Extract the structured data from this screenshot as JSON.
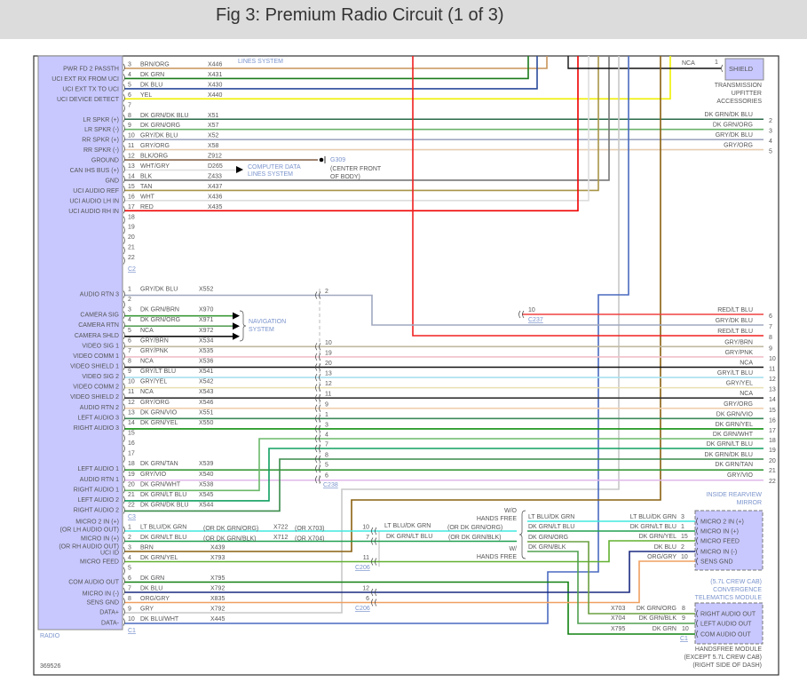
{
  "title": "Fig 3: Premium Radio Circuit (1 of 3)",
  "radio": {
    "label": "RADIO",
    "part_number": "369526"
  },
  "c2": {
    "connector": "C2",
    "top_note": "LINES SYSTEM",
    "pins": [
      {
        "pin": "3",
        "wire": "BRN/ORG",
        "circuit": "X446",
        "func": "PWR FD 2 PASSTH",
        "hex": "#c8945a"
      },
      {
        "pin": "4",
        "wire": "DK GRN",
        "circuit": "X431",
        "func": "UCI EXT RX FROM UCI",
        "hex": "#1a7a1a"
      },
      {
        "pin": "5",
        "wire": "DK BLU",
        "circuit": "X430",
        "func": "UCI EXT TX TO UCI",
        "hex": "#2a4a9a"
      },
      {
        "pin": "6",
        "wire": "YEL",
        "circuit": "X440",
        "func": "UCI DEVICE DETECT",
        "hex": "#f0f000"
      },
      {
        "pin": "7"
      },
      {
        "pin": "8",
        "wire": "DK GRN/DK BLU",
        "circuit": "X51",
        "func": "LR SPKR (+)",
        "hex": "#2a6a4a"
      },
      {
        "pin": "9",
        "wire": "DK GRN/ORG",
        "circuit": "X57",
        "func": "LR SPKR (-)",
        "hex": "#6ab06a"
      },
      {
        "pin": "10",
        "wire": "GRY/DK BLU",
        "circuit": "X52",
        "func": "RR SPKR (+)",
        "hex": "#a0a8c0"
      },
      {
        "pin": "11",
        "wire": "GRY/ORG",
        "circuit": "X58",
        "func": "RR SPKR (-)",
        "hex": "#e8cdb0"
      },
      {
        "pin": "12",
        "wire": "BLK/ORG",
        "circuit": "Z912",
        "func": "GROUND",
        "hex": "#8a6a50"
      },
      {
        "pin": "13",
        "wire": "WHT/GRY",
        "circuit": "D265",
        "func": "CAN IHS BUS (+)",
        "hex": "#dddddd"
      },
      {
        "pin": "14",
        "wire": "BLK",
        "circuit": "Z433",
        "func": "GND",
        "hex": "#777777"
      },
      {
        "pin": "15",
        "wire": "TAN",
        "circuit": "X437",
        "func": "UCI AUDIO REF",
        "hex": "#a89448"
      },
      {
        "pin": "16",
        "wire": "WHT",
        "circuit": "X436",
        "func": "UCI AUDIO LH IN",
        "hex": "#dddddd"
      },
      {
        "pin": "17",
        "wire": "RED",
        "circuit": "X435",
        "func": "UCI AUDIO RH IN",
        "hex": "#f00000"
      },
      {
        "pin": "18"
      },
      {
        "pin": "19"
      },
      {
        "pin": "20"
      },
      {
        "pin": "21"
      },
      {
        "pin": "22"
      }
    ]
  },
  "ground": {
    "id": "G309",
    "location1": "(CENTER FRONT",
    "location2": "OF BODY)"
  },
  "computer_data": {
    "line1": "COMPUTER DATA",
    "line2": "LINES SYSTEM"
  },
  "shield": {
    "label": "SHIELD",
    "wire": "NCA",
    "pin": "1",
    "module": [
      "TRANSMISSION",
      "UPFITTER",
      "ACCESSORIES"
    ]
  },
  "navigation": {
    "line1": "NAVIGATION",
    "line2": "SYSTEM"
  },
  "c3": {
    "connector": "C3",
    "pins": [
      {
        "pin": "1",
        "wire": "GRY/DK BLU",
        "circuit": "X552",
        "func": "AUDIO RTN 3",
        "hex": "#a0a8c0"
      },
      {
        "pin": "2"
      },
      {
        "pin": "3",
        "wire": "DK GRN/BRN",
        "circuit": "X970",
        "func": "CAMERA SIG",
        "hex": "#3a9a3a"
      },
      {
        "pin": "4",
        "wire": "DK GRN/ORG",
        "circuit": "X971",
        "func": "CAMERA RTN",
        "hex": "#5aa05a"
      },
      {
        "pin": "5",
        "wire": "NCA",
        "circuit": "X972",
        "func": "CAMERA SHLD",
        "hex": "#111111"
      },
      {
        "pin": "6",
        "wire": "GRY/BRN",
        "circuit": "X534",
        "func": "VIDEO SIG 1",
        "hex": "#c0b8a0"
      },
      {
        "pin": "7",
        "wire": "GRY/PNK",
        "circuit": "X535",
        "func": "VIDEO COMM 1",
        "hex": "#f0c0c8"
      },
      {
        "pin": "8",
        "wire": "NCA",
        "circuit": "X536",
        "func": "VIDEO SHIELD 1",
        "hex": "#111111"
      },
      {
        "pin": "9",
        "wire": "GRY/LT BLU",
        "circuit": "X541",
        "func": "VIDEO SIG 2",
        "hex": "#a8e0f0"
      },
      {
        "pin": "10",
        "wire": "GRY/YEL",
        "circuit": "X542",
        "func": "VIDEO COMM 2",
        "hex": "#e8e0b0"
      },
      {
        "pin": "11",
        "wire": "NCA",
        "circuit": "X543",
        "func": "VIDEO SHIELD 2",
        "hex": "#333333"
      },
      {
        "pin": "12",
        "wire": "GRY/ORG",
        "circuit": "X546",
        "func": "AUDIO RTN 2",
        "hex": "#f0d0b0"
      },
      {
        "pin": "13",
        "wire": "DK GRN/VIO",
        "circuit": "X551",
        "func": "LEFT AUDIO 3",
        "hex": "#3a8a5a"
      },
      {
        "pin": "14",
        "wire": "DK GRN/YEL",
        "circuit": "X550",
        "func": "RIGHT AUDIO 3",
        "hex": "#109010"
      },
      {
        "pin": "15"
      },
      {
        "pin": "16"
      },
      {
        "pin": "17"
      },
      {
        "pin": "18",
        "wire": "DK GRN/TAN",
        "circuit": "X539",
        "func": "LEFT AUDIO 1",
        "hex": "#3a9a3a"
      },
      {
        "pin": "19",
        "wire": "GRY/VIO",
        "circuit": "X540",
        "func": "AUDIO RTN 1",
        "hex": "#e0b8e8"
      },
      {
        "pin": "20",
        "wire": "DK GRN/WHT",
        "circuit": "X538",
        "func": "RIGHT AUDIO 1",
        "hex": "#6ab86a"
      },
      {
        "pin": "21",
        "wire": "DK GRN/LT BLU",
        "circuit": "X545",
        "func": "LEFT AUDIO 2",
        "hex": "#10a060"
      },
      {
        "pin": "22",
        "wire": "DK GRN/DK BLU",
        "circuit": "X544",
        "func": "RIGHT AUDIO 2",
        "hex": "#3a8a4a"
      }
    ]
  },
  "c238": {
    "connector": "C238",
    "pins": [
      "2",
      "10",
      "19",
      "20",
      "13",
      "12",
      "11",
      "9",
      "1",
      "3",
      "4",
      "7",
      "8",
      "5",
      "6"
    ]
  },
  "c237": {
    "connector": "C237",
    "pin": "10"
  },
  "right_pins": [
    {
      "pin": "2",
      "wire": "DK GRN/DK BLU"
    },
    {
      "pin": "3",
      "wire": "DK GRN/ORG"
    },
    {
      "pin": "4",
      "wire": "GRY/DK BLU"
    },
    {
      "pin": "5",
      "wire": "GRY/ORG"
    },
    {
      "pin": "6",
      "wire": "RED/LT BLU",
      "hex": "#f04040"
    },
    {
      "pin": "7",
      "wire": "GRY/DK BLU"
    },
    {
      "pin": "8",
      "wire": "RED/LT BLU"
    },
    {
      "pin": "9",
      "wire": "GRY/BRN"
    },
    {
      "pin": "10",
      "wire": "GRY/PNK"
    },
    {
      "pin": "11",
      "wire": "NCA"
    },
    {
      "pin": "12",
      "wire": "GRY/LT BLU"
    },
    {
      "pin": "13",
      "wire": "GRY/YEL"
    },
    {
      "pin": "14",
      "wire": "NCA"
    },
    {
      "pin": "15",
      "wire": "GRY/ORG"
    },
    {
      "pin": "16",
      "wire": "DK GRN/VIO"
    },
    {
      "pin": "17",
      "wire": "DK GRN/YEL"
    },
    {
      "pin": "18",
      "wire": "DK GRN/WHT"
    },
    {
      "pin": "19",
      "wire": "DK GRN/LT BLU"
    },
    {
      "pin": "20",
      "wire": "DK GRN/DK BLU"
    },
    {
      "pin": "21",
      "wire": "DK GRN/TAN"
    },
    {
      "pin": "22",
      "wire": "GRY/VIO"
    }
  ],
  "c1": {
    "connector": "C1",
    "pins": [
      {
        "pin": "1",
        "wire": "LT BLU/DK GRN",
        "wire_alt": "(OR DK GRN/ORG)",
        "circuit": "X722",
        "circuit_alt": "(OR X703)",
        "hex": "#40e8e0"
      },
      {
        "pin": "2",
        "wire": "DK GRN/LT BLU",
        "wire_alt": "(OR DK GRN/BLK)",
        "circuit": "X712",
        "circuit_alt": "(OR X704)",
        "hex": "#20a050"
      },
      {
        "pin": "3",
        "wire": "BRN",
        "circuit": "X439",
        "hex": "#8a6010"
      },
      {
        "pin": "4",
        "wire": "DK GRN/YEL",
        "circuit": "X793",
        "hex": "#60b030"
      },
      {
        "pin": "5"
      },
      {
        "pin": "6",
        "wire": "DK GRN",
        "circuit": "X795",
        "hex": "#108010"
      },
      {
        "pin": "7",
        "wire": "DK BLU",
        "circuit": "X792",
        "hex": "#1a2a80"
      },
      {
        "pin": "8",
        "wire": "ORG/GRY",
        "circuit": "X835",
        "hex": "#f0a060"
      },
      {
        "pin": "9",
        "wire": "GRY",
        "circuit": "X792",
        "hex": "#c8c8c8"
      },
      {
        "pin": "10",
        "wire": "DK BLU/WHT",
        "circuit": "X445",
        "hex": "#4a6ac0"
      }
    ],
    "funcs": [
      "MICRO 2 IN (+)",
      "(OR LH AUDIO OUT)",
      "MICRO IN (+)",
      "(OR RH AUDIO OUT)",
      "UCI ID",
      "MICRO FEED",
      "COM AUDIO OUT",
      "MICRO IN (-)",
      "SENS GND",
      "DATA+",
      "DATA-"
    ]
  },
  "c206": {
    "connector": "C206",
    "pins": [
      "10",
      "7",
      "11",
      "12",
      "6"
    ],
    "wires": [
      {
        "wire": "LT BLU/DK GRN",
        "alt": "(OR DK GRN/ORG)"
      },
      {
        "wire": "DK GRN/LT BLU",
        "alt": "(OR DK GRN/BLK)"
      }
    ]
  },
  "hands_free_option": {
    "without": [
      "W/O",
      "HANDS FREE"
    ],
    "with": [
      "W/",
      "HANDS FREE"
    ],
    "wires": [
      "LT BLU/DK GRN",
      "DK GRN/LT BLU",
      "DK GRN/ORG",
      "DK GRN/BLK"
    ]
  },
  "mirror": {
    "title": [
      "INSIDE REARVIEW",
      "MIRROR"
    ],
    "pins": [
      {
        "pin": "3",
        "wire": "LT BLU/DK GRN",
        "func": "MICRO 2 IN (+)"
      },
      {
        "pin": "1",
        "wire": "DK GRN/LT BLU",
        "func": "MICRO IN (+)"
      },
      {
        "pin": "15",
        "wire": "DK GRN/YEL",
        "func": "MICRO FEED"
      },
      {
        "pin": "2",
        "wire": "DK BLU",
        "func": "MICRO IN (-)"
      },
      {
        "pin": "10",
        "wire": "ORG/GRY",
        "func": "SENS GND"
      }
    ]
  },
  "telematics": [
    "(5.7L CREW CAB)",
    "CONVERGENCE",
    "TELEMATICS MODULE"
  ],
  "handsfree": {
    "connector": "C1",
    "title": [
      "HANDSFREE MODULE",
      "(EXCEPT 5.7L CREW CAB)",
      "(RIGHT SIDE OF DASH)"
    ],
    "pins": [
      {
        "pin": "8",
        "circuit": "X703",
        "wire": "DK GRN/ORG",
        "func": "RIGHT AUDIO OUT"
      },
      {
        "pin": "9",
        "circuit": "X704",
        "wire": "DK GRN/BLK",
        "func": "LEFT AUDIO OUT"
      },
      {
        "pin": "10",
        "circuit": "X795",
        "wire": "DK GRN",
        "func": "COM AUDIO OUT"
      }
    ]
  }
}
